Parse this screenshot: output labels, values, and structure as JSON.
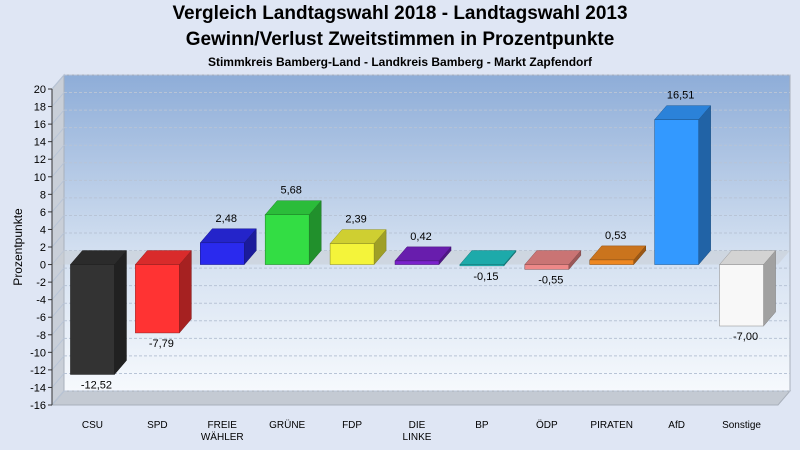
{
  "chart_data": {
    "type": "bar",
    "title": "Vergleich Landtagswahl 2018 - Landtagswahl 2013",
    "subtitle": "Gewinn/Verlust Zweitstimmen in Prozentpunkte",
    "subsubtitle": "Stimmkreis Bamberg-Land - Landkreis Bamberg - Markt Zapfendorf",
    "ylabel": "Prozentpunkte",
    "ylim": [
      -16,
      20
    ],
    "ytick_step": 2,
    "grid": true,
    "categories": [
      {
        "lines": [
          "CSU"
        ]
      },
      {
        "lines": [
          "SPD"
        ]
      },
      {
        "lines": [
          "FREIE",
          "WÄHLER"
        ]
      },
      {
        "lines": [
          "GRÜNE"
        ]
      },
      {
        "lines": [
          "FDP"
        ]
      },
      {
        "lines": [
          "DIE",
          "LINKE"
        ]
      },
      {
        "lines": [
          "BP"
        ]
      },
      {
        "lines": [
          "ÖDP"
        ]
      },
      {
        "lines": [
          "PIRATEN"
        ]
      },
      {
        "lines": [
          "AfD"
        ]
      },
      {
        "lines": [
          "Sonstige"
        ]
      }
    ],
    "values": [
      -12.52,
      -7.79,
      2.48,
      5.68,
      2.39,
      0.42,
      -0.15,
      -0.55,
      0.53,
      16.51,
      -7.0
    ],
    "value_labels": [
      "-12,52",
      "-7,79",
      "2,48",
      "5,68",
      "2,39",
      "0,42",
      "-0,15",
      "-0,55",
      "0,53",
      "16,51",
      "-7,00"
    ],
    "colors": [
      "#333333",
      "#ff3333",
      "#2a2aee",
      "#33dd44",
      "#f4f43a",
      "#7a22cc",
      "#22c8c8",
      "#ee8888",
      "#ee8822",
      "#3399ff",
      "#f8f8f8"
    ]
  }
}
